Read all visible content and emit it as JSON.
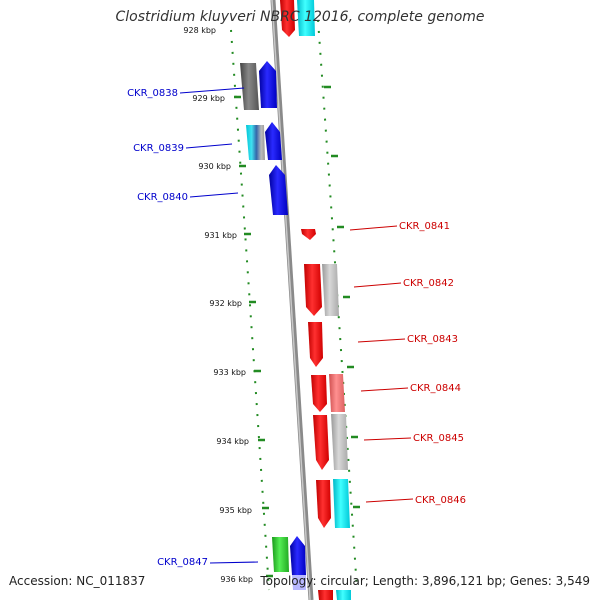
{
  "title": "Clostridium kluyveri NBRC 12016, complete genome",
  "accession_text": "Accession: NC_011837",
  "topology_text": "Topology: circular; Length: 3,896,121 bp; Genes: 3,549",
  "colors": {
    "backbone": "#8a8a8a",
    "left_labels": "#0000cc",
    "right_labels": "#cc0000",
    "ticks": "#228b22",
    "red": "#ff0000",
    "blue": "#0000ff",
    "grey": "#bbbbbb",
    "dark_grey": "#666666",
    "cyan": "#00ffff",
    "pink": "#ee7777",
    "green": "#33cc33"
  },
  "position_labels": [
    "928 kbp",
    "929 kbp",
    "930 kbp",
    "931 kbp",
    "932 kbp",
    "933 kbp",
    "934 kbp",
    "935 kbp",
    "936 kbp"
  ],
  "left_genes": [
    "CKR_0838",
    "CKR_0839",
    "CKR_0840",
    "CKR_0847"
  ],
  "right_genes": [
    "CKR_0841",
    "CKR_0842",
    "CKR_0843",
    "CKR_0844",
    "CKR_0845",
    "CKR_0846"
  ]
}
